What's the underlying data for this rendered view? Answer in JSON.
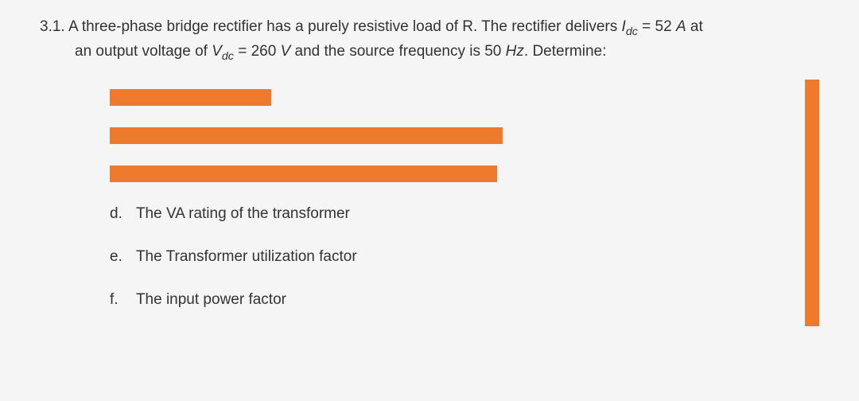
{
  "question": {
    "number": "3.1.",
    "line1_part1": "A three-phase bridge rectifier has a purely resistive load of R. The rectifier delivers ",
    "line1_var": "I",
    "line1_sub": "dc",
    "line1_part2": " = 52 ",
    "line1_unit": "A",
    "line1_part3": " at",
    "line2_part1": "an output voltage of ",
    "line2_var": "V",
    "line2_sub": "dc",
    "line2_part2": " = 260 ",
    "line2_unit": "V",
    "line2_part3": " and the source frequency is 50 ",
    "line2_freq_unit": "Hz",
    "line2_part4": ". Determine:"
  },
  "redacted": {
    "bar1_width": 203,
    "bar2_width": 494,
    "bar3_width": 487,
    "right_bar_height": 310,
    "color": "#ee7a2e"
  },
  "items": {
    "d": {
      "letter": "d.",
      "text": "The VA rating of the transformer"
    },
    "e": {
      "letter": "e.",
      "text": "The Transformer utilization factor"
    },
    "f": {
      "letter": "f.",
      "text": "The input power factor"
    }
  },
  "colors": {
    "background": "#f5f5f5",
    "text": "#333333",
    "highlight": "#ee7a2e"
  }
}
